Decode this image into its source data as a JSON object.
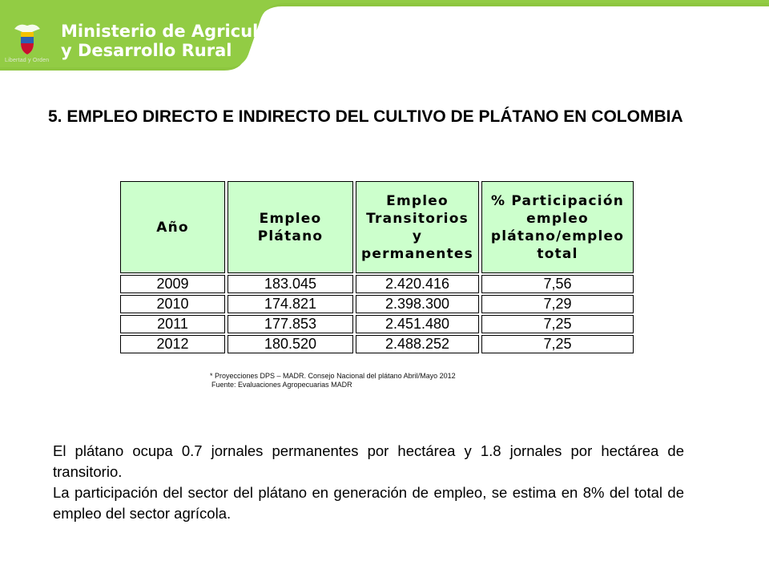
{
  "header": {
    "ministry_line1": "Ministerio de Agricultura",
    "ministry_line2": "y Desarrollo Rural",
    "crest_motto": "Libertad y Orden",
    "colors": {
      "banner_green": "#8dc63f",
      "banner_dark": "#6aa22c"
    }
  },
  "title": "5. EMPLEO DIRECTO E INDIRECTO DEL CULTIVO DE PLÁTANO EN COLOMBIA",
  "table": {
    "headers": [
      "Año",
      "Empleo Plátano",
      "Empleo Transitorios y permanentes",
      "% Participación empleo plátano/empleo total"
    ],
    "rows": [
      [
        "2009",
        "183.045",
        "2.420.416",
        "7,56"
      ],
      [
        "2010",
        "174.821",
        "2.398.300",
        "7,29"
      ],
      [
        "2011",
        "177.853",
        "2.451.480",
        "7,25"
      ],
      [
        "2012",
        "180.520",
        "2.488.252",
        "7,25"
      ]
    ],
    "header_bg": "#ccffcc"
  },
  "notes": {
    "line1": "* Proyecciones DPS – MADR. Consejo Nacional del plátano Abril/Mayo 2012",
    "line2": "Fuente: Evaluaciones Agropecuarias MADR"
  },
  "body": {
    "paragraph1": "El plátano ocupa 0.7 jornales permanentes por hectárea y 1.8 jornales por hectárea de transitorio.",
    "paragraph2": "La participación del sector del plátano en generación de empleo, se estima en 8% del total de empleo del sector agrícola."
  }
}
